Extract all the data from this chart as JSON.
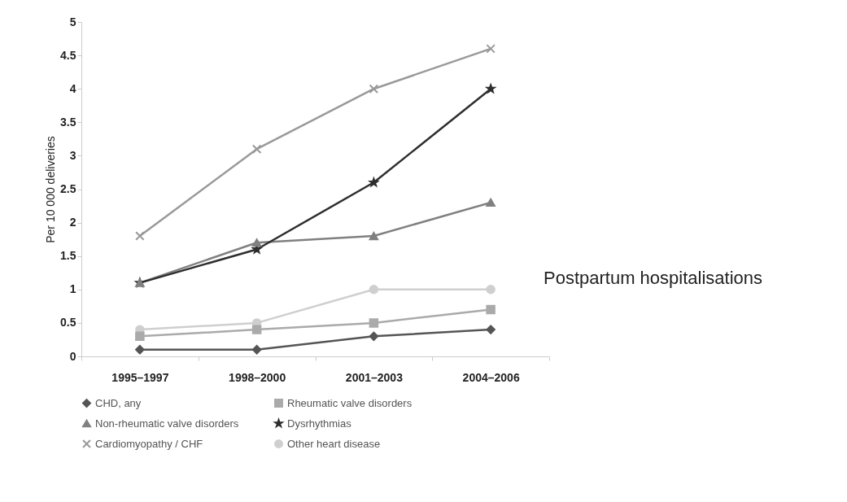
{
  "chart_data": {
    "type": "line",
    "categories": [
      "1995–1997",
      "1998–2000",
      "2001–2003",
      "2004–2006"
    ],
    "ylabel": "Per 10 000 deliveries",
    "ylim": [
      0,
      5
    ],
    "yticks": [
      0,
      0.5,
      1,
      1.5,
      2,
      2.5,
      3,
      3.5,
      4,
      4.5,
      5
    ],
    "grid": false,
    "legend": "bottom",
    "annotations": [
      "Postpartum hospitalisations"
    ],
    "series": [
      {
        "name": "CHD, any",
        "color": "#555555",
        "marker": "diamond",
        "values": [
          0.1,
          0.1,
          0.3,
          0.4
        ]
      },
      {
        "name": "Rheumatic valve disorders",
        "color": "#aaaaaa",
        "marker": "square",
        "values": [
          0.3,
          0.4,
          0.5,
          0.7
        ]
      },
      {
        "name": "Non-rheumatic valve disorders",
        "color": "#808080",
        "marker": "triangle",
        "values": [
          1.1,
          1.7,
          1.8,
          2.3
        ]
      },
      {
        "name": "Dysrhythmias",
        "color": "#2e2e2e",
        "marker": "star",
        "values": [
          1.1,
          1.6,
          2.6,
          4.0
        ]
      },
      {
        "name": "Cardiomyopathy / CHF",
        "color": "#999999",
        "marker": "cross",
        "values": [
          1.8,
          3.1,
          4.0,
          4.6
        ]
      },
      {
        "name": "Other heart disease",
        "color": "#cfcfcf",
        "marker": "circle",
        "values": [
          0.4,
          0.5,
          1.0,
          1.0
        ]
      }
    ]
  }
}
